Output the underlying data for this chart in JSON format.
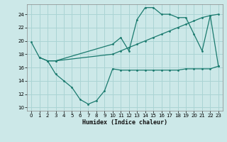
{
  "line1": {
    "x": [
      0,
      1,
      2,
      3,
      10,
      11,
      12,
      13,
      14,
      15,
      16,
      17,
      18,
      19,
      20,
      21,
      22,
      23
    ],
    "y": [
      19.8,
      17.5,
      17.0,
      17.0,
      19.5,
      20.5,
      18.5,
      23.2,
      25.0,
      25.0,
      24.0,
      24.0,
      23.5,
      23.5,
      21.0,
      18.5,
      23.8,
      16.2
    ]
  },
  "line2": {
    "x": [
      2,
      3,
      4,
      5,
      6,
      7,
      8,
      9,
      10,
      11,
      12,
      13,
      14,
      15,
      16,
      17,
      18,
      19,
      20,
      21,
      22,
      23
    ],
    "y": [
      17.0,
      15.0,
      14.0,
      13.0,
      11.2,
      10.5,
      11.0,
      12.5,
      15.8,
      15.6,
      15.6,
      15.6,
      15.6,
      15.6,
      15.6,
      15.6,
      15.6,
      15.8,
      15.8,
      15.8,
      15.8,
      16.2
    ]
  },
  "line3": {
    "x": [
      1,
      2,
      3,
      10,
      11,
      12,
      13,
      14,
      15,
      16,
      17,
      18,
      19,
      20,
      21,
      22,
      23
    ],
    "y": [
      17.5,
      17.0,
      17.0,
      18.0,
      18.5,
      19.0,
      19.5,
      20.0,
      20.5,
      21.0,
      21.5,
      22.0,
      22.5,
      23.0,
      23.5,
      23.8,
      24.0
    ]
  },
  "color": "#1a7a6e",
  "bg_color": "#cce8e8",
  "grid_color": "#aad4d4",
  "xlabel": "Humidex (Indice chaleur)",
  "xlim": [
    -0.5,
    23.5
  ],
  "ylim": [
    9.5,
    25.5
  ],
  "yticks": [
    10,
    12,
    14,
    16,
    18,
    20,
    22,
    24
  ],
  "xticks": [
    0,
    1,
    2,
    3,
    4,
    5,
    6,
    7,
    8,
    9,
    10,
    11,
    12,
    13,
    14,
    15,
    16,
    17,
    18,
    19,
    20,
    21,
    22,
    23
  ]
}
